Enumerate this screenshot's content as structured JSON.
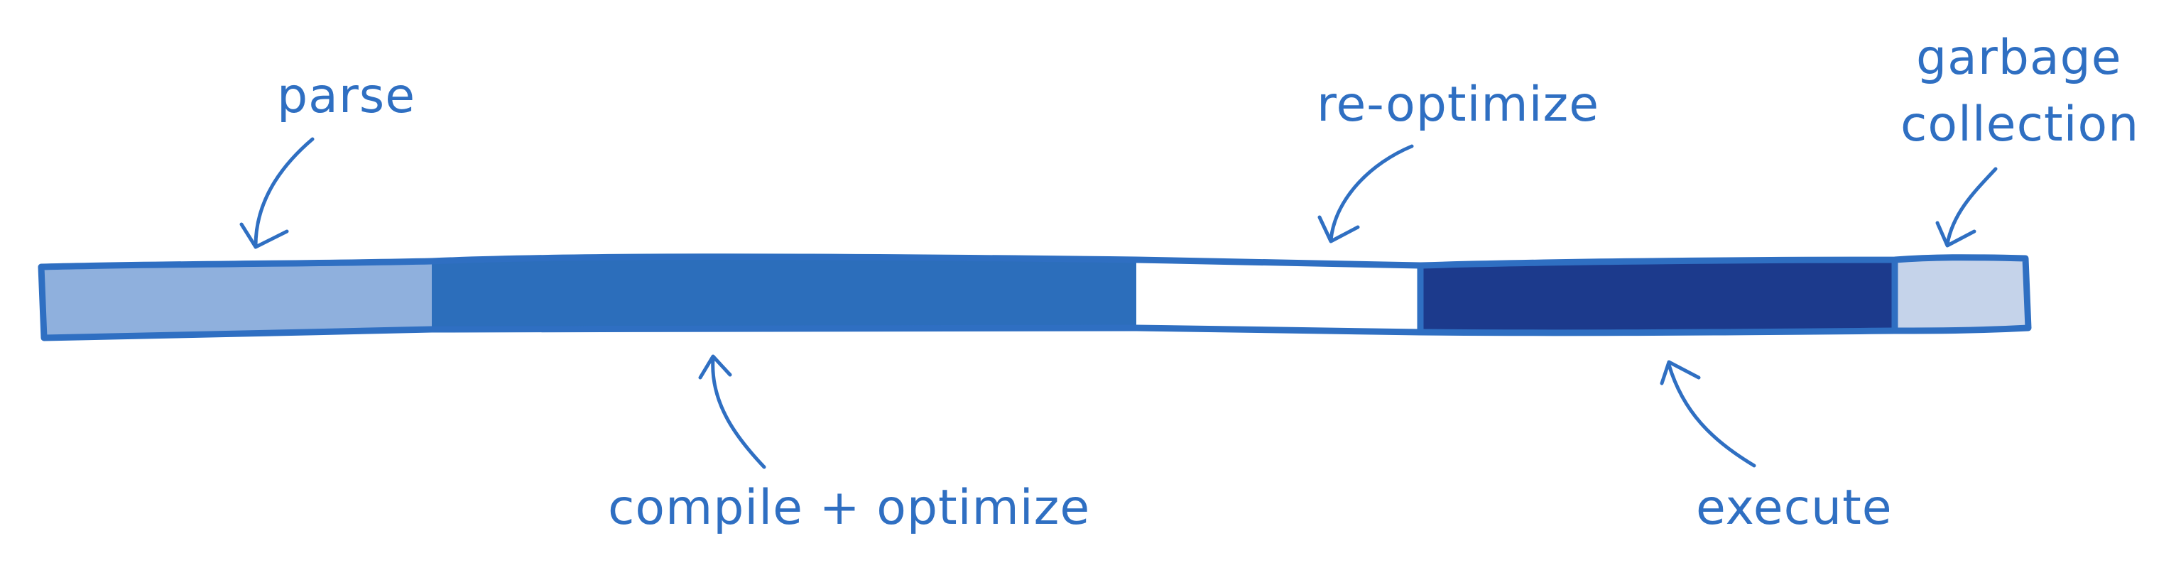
{
  "diagram": {
    "labels": {
      "parse": "parse",
      "compile_optimize": "compile + optimize",
      "reoptimize": "re-optimize",
      "execute": "execute",
      "gc_line1": "garbage",
      "gc_line2": "collection"
    },
    "colors": {
      "parse": "#8fb0dd",
      "compile_optimize": "#2c6ebb",
      "reoptimize": "#ffffff",
      "execute": "#1c3a8c",
      "garbage_collection": "#c5d3ea",
      "outline": "#2f6fc2",
      "text": "#2f6fc2"
    }
  }
}
